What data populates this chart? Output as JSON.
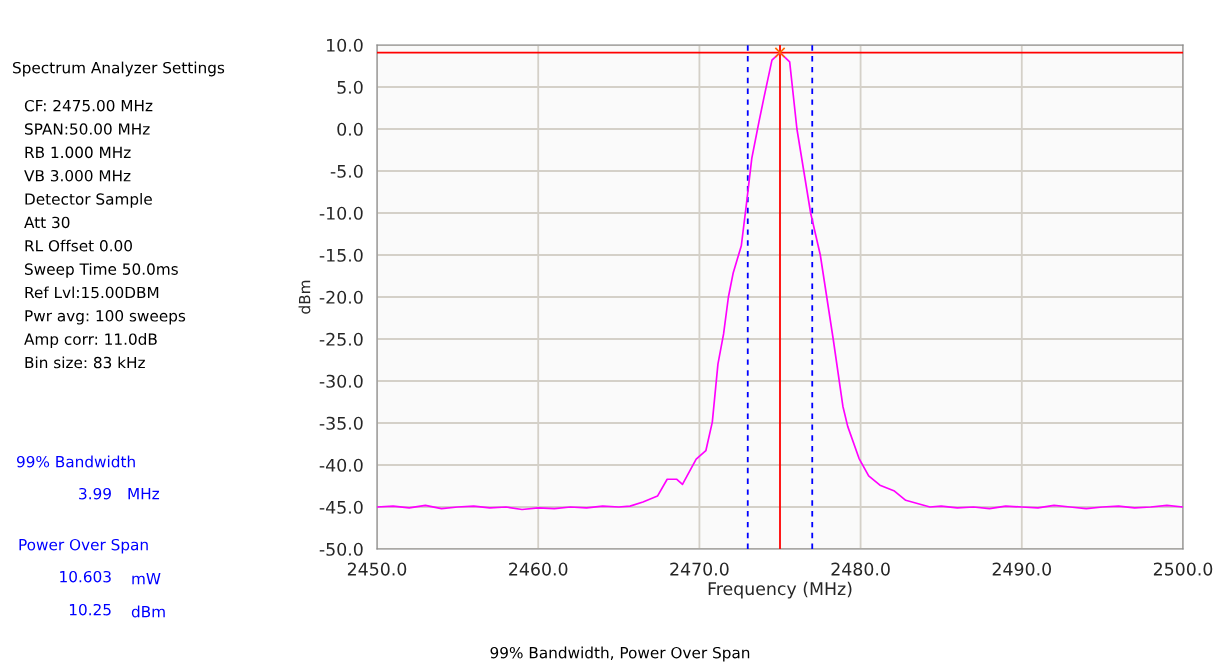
{
  "chart_data": {
    "type": "line",
    "xlabel": "Frequency (MHz)",
    "ylabel": "dBm",
    "xlim": [
      2450,
      2500
    ],
    "xticks": [
      {
        "value": 2450,
        "label": "2450.0"
      },
      {
        "value": 2460,
        "label": "2460.0"
      },
      {
        "value": 2470,
        "label": "2470.0"
      },
      {
        "value": 2480,
        "label": "2480.0"
      },
      {
        "value": 2490,
        "label": "2490.0"
      },
      {
        "value": 2500,
        "label": "2500.0"
      }
    ],
    "ylim": [
      -50,
      10
    ],
    "yticks": [
      {
        "value": 10,
        "label": "10.0"
      },
      {
        "value": 5,
        "label": "5.0"
      },
      {
        "value": 0,
        "label": "0.0"
      },
      {
        "value": -5,
        "label": "-5.0"
      },
      {
        "value": -10,
        "label": "-10.0"
      },
      {
        "value": -15,
        "label": "-15.0"
      },
      {
        "value": -20,
        "label": "-20.0"
      },
      {
        "value": -25,
        "label": "-25.0"
      },
      {
        "value": -30,
        "label": "-30.0"
      },
      {
        "value": -35,
        "label": "-35.0"
      },
      {
        "value": -40,
        "label": "-40.0"
      },
      {
        "value": -45,
        "label": "-45.0"
      },
      {
        "value": -50,
        "label": "-50.0"
      }
    ],
    "grid": true,
    "legend": false,
    "marker": "none",
    "line_style": "solid",
    "series": [
      {
        "color": "#ff00ff",
        "x": [
          2450,
          2451,
          2452,
          2453,
          2454,
          2455,
          2456,
          2457,
          2458,
          2459,
          2460,
          2461,
          2462,
          2463,
          2464,
          2465,
          2465.7,
          2466.5,
          2467.4,
          2468.0,
          2468.6,
          2468.95,
          2469.8,
          2470.4,
          2470.8,
          2471.15,
          2471.5,
          2471.8,
          2472.1,
          2472.6,
          2472.9,
          2473.25,
          2473.7,
          2474.0,
          2474.5,
          2475.0,
          2475.6,
          2476.05,
          2476.9,
          2477.5,
          2478.3,
          2478.9,
          2479.2,
          2479.9,
          2480.5,
          2481.2,
          2482.1,
          2482.8,
          2484.3,
          2485,
          2486,
          2487,
          2488,
          2489,
          2490,
          2491,
          2492,
          2493,
          2494,
          2495,
          2496,
          2497,
          2498,
          2499,
          2500
        ],
        "values": [
          -45.0,
          -44.9,
          -45.1,
          -44.8,
          -45.2,
          -45.0,
          -44.9,
          -45.1,
          -45.0,
          -45.3,
          -45.1,
          -45.2,
          -45.0,
          -45.1,
          -44.9,
          -45.0,
          -44.9,
          -44.4,
          -43.7,
          -41.7,
          -41.7,
          -42.3,
          -39.3,
          -38.3,
          -34.9,
          -28.0,
          -24.4,
          -20.0,
          -17.1,
          -13.9,
          -9.2,
          -3.5,
          0.9,
          3.7,
          8.2,
          9.1,
          8.0,
          0.0,
          -10.0,
          -15.0,
          -25.0,
          -33.0,
          -35.4,
          -39.2,
          -41.3,
          -42.4,
          -43.1,
          -44.2,
          -45.0,
          -44.9,
          -45.1,
          -45.0,
          -45.2,
          -44.9,
          -45.0,
          -45.1,
          -44.8,
          -45.0,
          -45.2,
          -45.0,
          -44.9,
          -45.1,
          -45.0,
          -44.8,
          -45.0
        ]
      },
      {
        "type": "scatter",
        "color": "#ff6600",
        "marker": "cross",
        "x": [
          2475.0
        ],
        "values": [
          9.1
        ]
      }
    ],
    "ref_lines": [
      {
        "axis": "y",
        "value": 9.1,
        "color": "#ff0000",
        "line_style": "solid"
      },
      {
        "axis": "x",
        "value": 2475.0,
        "color": "#ff0000",
        "line_style": "solid"
      },
      {
        "axis": "x",
        "value": 2473.0,
        "color": "#0000ff",
        "line_style": "dashed"
      },
      {
        "axis": "x",
        "value": 2477.0,
        "color": "#0000ff",
        "line_style": "dashed"
      }
    ],
    "annotations": [
      "Spectrum Analyzer Settings",
      "CF: 2475.00 MHz",
      "SPAN:50.00 MHz",
      "RB 1.000 MHz",
      "VB 3.000 MHz",
      "Detector Sample",
      "Att 30",
      "RL Offset 0.00",
      "Sweep Time 50.0ms",
      "Ref Lvl:15.00DBM",
      "Pwr avg: 100 sweeps",
      "Amp corr: 11.0dB",
      "Bin size: 83 kHz",
      "99% Bandwidth",
      "3.99",
      "MHz",
      "Power Over Span",
      "10.603",
      "mW",
      "10.25",
      "dBm",
      "99% Bandwidth, Power Over Span"
    ]
  }
}
